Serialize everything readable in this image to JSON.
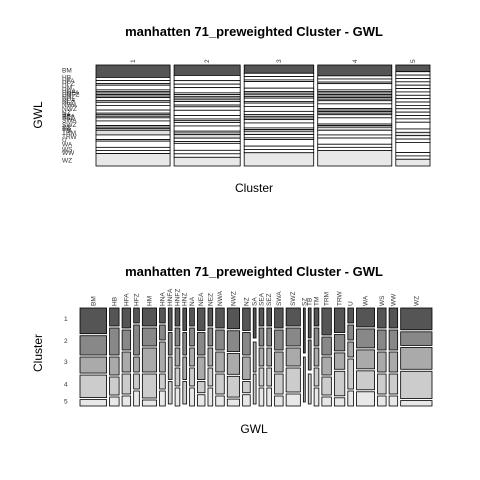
{
  "chart_data": [
    {
      "type": "mosaic",
      "title": "manhatten 71_preweighted Cluster - GWL",
      "xlabel": "Cluster",
      "ylabel": "GWL",
      "categories": [
        "1",
        "2",
        "3",
        "4",
        "5"
      ],
      "series": [
        {
          "name": "BM",
          "color": "#555555",
          "values": [
            8,
            6,
            5,
            7,
            2
          ]
        },
        {
          "name": "HB",
          "color": "#ffffff",
          "values": [
            2,
            3,
            2,
            2,
            1
          ]
        },
        {
          "name": "HFA",
          "color": "#ffffff",
          "values": [
            2,
            2,
            2,
            2,
            1
          ]
        },
        {
          "name": "HFZ",
          "color": "#ffffff",
          "values": [
            1,
            2,
            1,
            1,
            1
          ]
        },
        {
          "name": "HM",
          "color": "#ffffff",
          "values": [
            3,
            3,
            4,
            4,
            1
          ]
        },
        {
          "name": "HNA",
          "color": "#ffffff",
          "values": [
            1,
            1,
            2,
            1,
            1
          ]
        },
        {
          "name": "HNFA",
          "color": "#ffffff",
          "values": [
            1,
            1,
            1,
            1,
            0
          ]
        },
        {
          "name": "HNFZ",
          "color": "#ffffff",
          "values": [
            1,
            1,
            1,
            1,
            1
          ]
        },
        {
          "name": "HNZ",
          "color": "#ffffff",
          "values": [
            1,
            1,
            1,
            1,
            0
          ]
        },
        {
          "name": "NA",
          "color": "#ffffff",
          "values": [
            1,
            1,
            1,
            1,
            1
          ]
        },
        {
          "name": "NEA",
          "color": "#ffffff",
          "values": [
            2,
            2,
            2,
            1,
            1
          ]
        },
        {
          "name": "NEZ",
          "color": "#ffffff",
          "values": [
            1,
            1,
            1,
            1,
            1
          ]
        },
        {
          "name": "NWA",
          "color": "#ffffff",
          "values": [
            2,
            2,
            2,
            2,
            1
          ]
        },
        {
          "name": "NWZ",
          "color": "#ffffff",
          "values": [
            3,
            3,
            3,
            3,
            1
          ]
        },
        {
          "name": "NZ",
          "color": "#ffffff",
          "values": [
            2,
            2,
            2,
            1,
            1
          ]
        },
        {
          "name": "SA",
          "color": "#ffffff",
          "values": [
            1,
            0,
            1,
            1,
            0
          ]
        },
        {
          "name": "SEA",
          "color": "#ffffff",
          "values": [
            1,
            1,
            1,
            1,
            1
          ]
        },
        {
          "name": "SEZ",
          "color": "#ffffff",
          "values": [
            1,
            1,
            1,
            1,
            1
          ]
        },
        {
          "name": "SWA",
          "color": "#ffffff",
          "values": [
            2,
            2,
            2,
            2,
            1
          ]
        },
        {
          "name": "SWZ",
          "color": "#ffffff",
          "values": [
            3,
            3,
            3,
            4,
            2
          ]
        },
        {
          "name": "SZ",
          "color": "#ffffff",
          "values": [
            1,
            0,
            1,
            0,
            0
          ]
        },
        {
          "name": "TB",
          "color": "#ffffff",
          "values": [
            1,
            1,
            0,
            1,
            0
          ]
        },
        {
          "name": "TM",
          "color": "#ffffff",
          "values": [
            1,
            1,
            1,
            1,
            1
          ]
        },
        {
          "name": "TRM",
          "color": "#e0e0e0",
          "values": [
            3,
            2,
            2,
            2,
            1
          ]
        },
        {
          "name": "TRW",
          "color": "#ffffff",
          "values": [
            3,
            2,
            2,
            3,
            1
          ]
        },
        {
          "name": "U",
          "color": "#ffffff",
          "values": [
            1,
            1,
            1,
            2,
            1
          ]
        },
        {
          "name": "WA",
          "color": "#ffffff",
          "values": [
            4,
            4,
            4,
            4,
            3
          ]
        },
        {
          "name": "WS",
          "color": "#ffffff",
          "values": [
            2,
            2,
            2,
            2,
            1
          ]
        },
        {
          "name": "WW",
          "color": "#ffffff",
          "values": [
            2,
            2,
            2,
            2,
            1
          ]
        },
        {
          "name": "WZ",
          "color": "#e8e8e8",
          "values": [
            8,
            5,
            8,
            10,
            2
          ]
        }
      ]
    },
    {
      "type": "mosaic",
      "title": "manhatten 71_preweighted Cluster - GWL",
      "xlabel": "GWL",
      "ylabel": "Cluster",
      "categories": [
        "BM",
        "HB",
        "HFA",
        "HFZ",
        "HM",
        "HNA",
        "HNFA",
        "HNFZ",
        "HNZ",
        "NA",
        "NEA",
        "NEZ",
        "NWA",
        "NWZ",
        "NZ",
        "SA",
        "SEA",
        "SEZ",
        "SWA",
        "SWZ",
        "SZ",
        "TB",
        "TM",
        "TRM",
        "TRW",
        "U",
        "WA",
        "WS",
        "WW",
        "WZ"
      ],
      "series": [
        {
          "name": "1",
          "color": "#555555",
          "values": [
            8,
            2,
            2,
            1,
            3,
            1,
            1,
            1,
            1,
            1,
            2,
            1,
            2,
            3,
            2,
            1,
            1,
            1,
            2,
            3,
            1,
            1,
            1,
            3,
            3,
            1,
            4,
            2,
            2,
            8
          ]
        },
        {
          "name": "2",
          "color": "#888888",
          "values": [
            6,
            3,
            2,
            2,
            3,
            1,
            1,
            1,
            1,
            1,
            2,
            1,
            2,
            3,
            2,
            0,
            1,
            1,
            2,
            3,
            0,
            1,
            1,
            2,
            2,
            1,
            4,
            2,
            2,
            5
          ]
        },
        {
          "name": "3",
          "color": "#aaaaaa",
          "values": [
            5,
            2,
            2,
            1,
            4,
            2,
            1,
            1,
            1,
            1,
            2,
            1,
            2,
            3,
            2,
            1,
            1,
            1,
            2,
            3,
            1,
            0,
            1,
            2,
            2,
            1,
            4,
            2,
            2,
            8
          ]
        },
        {
          "name": "4",
          "color": "#cccccc",
          "values": [
            7,
            2,
            2,
            1,
            4,
            1,
            1,
            1,
            1,
            1,
            1,
            1,
            2,
            3,
            1,
            1,
            1,
            1,
            2,
            4,
            0,
            1,
            1,
            2,
            3,
            2,
            4,
            2,
            2,
            10
          ]
        },
        {
          "name": "5",
          "color": "#e8e8e8",
          "values": [
            2,
            1,
            1,
            1,
            1,
            1,
            0,
            1,
            0,
            1,
            1,
            1,
            1,
            1,
            1,
            0,
            1,
            1,
            1,
            2,
            0,
            0,
            1,
            1,
            1,
            1,
            3,
            1,
            1,
            2
          ]
        }
      ]
    }
  ]
}
